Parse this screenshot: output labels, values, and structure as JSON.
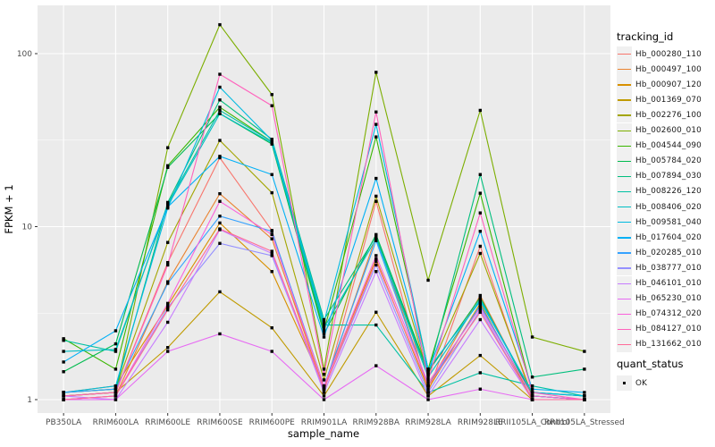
{
  "figure": {
    "x_axis_title": "sample_name",
    "y_axis_title": "FPKM + 1",
    "legend_tracking_title": "tracking_id",
    "legend_quant_title": "quant_status",
    "quant_items": [
      {
        "label": "OK",
        "marker": "black-filled-square"
      }
    ],
    "panel_background": "#ebebeb",
    "gridline_color": "#ffffff",
    "tick_text_color": "#4d4d4d",
    "point_color": "#000000"
  },
  "chart_data": {
    "type": "line",
    "title": "",
    "xlabel": "sample_name",
    "ylabel": "FPKM + 1",
    "y_scale": "log10",
    "ylim": [
      0.84,
      190
    ],
    "y_tick_labels": [
      "1",
      "10",
      "100"
    ],
    "y_tick_values": [
      1,
      10,
      100
    ],
    "y_minor_gridlines": [
      3.162,
      31.62
    ],
    "grid": true,
    "legend_position": "right",
    "point_marker": {
      "shape": "filled-square",
      "color": "#000000",
      "meaning": "OK"
    },
    "categories": [
      "PB350LA",
      "RRIM600LA",
      "RRIM600LE",
      "RRIM600SE",
      "RRIM600PE",
      "RRIM901LA",
      "RRIM928BA",
      "RRIM928LA",
      "RRIM928LE",
      "RRII105LA_Control",
      "RRII105LA_Stressed"
    ],
    "series": [
      {
        "name": "Hb_000280_110",
        "color": "#F8766D",
        "values": [
          1.05,
          1.1,
          6.2,
          25,
          9.5,
          1.1,
          14,
          1.1,
          7.7,
          1.0,
          1.0
        ]
      },
      {
        "name": "Hb_000497_100",
        "color": "#EA8331",
        "values": [
          1.0,
          1.05,
          4.8,
          15.5,
          8.5,
          1.15,
          8.8,
          1.2,
          4.0,
          1.05,
          1.0
        ]
      },
      {
        "name": "Hb_000907_120",
        "color": "#D89000",
        "values": [
          1.1,
          1.2,
          3.5,
          10.5,
          5.5,
          1.2,
          6.5,
          1.15,
          3.6,
          1.0,
          1.0
        ]
      },
      {
        "name": "Hb_001369_070",
        "color": "#C09B00",
        "values": [
          1.05,
          1.1,
          2.0,
          4.2,
          2.6,
          1.05,
          3.2,
          1.05,
          1.8,
          1.0,
          1.0
        ]
      },
      {
        "name": "Hb_002276_100",
        "color": "#A3A500",
        "values": [
          1.1,
          1.15,
          8.1,
          31.5,
          15.7,
          1.3,
          15,
          1.4,
          7.0,
          1.05,
          1.0
        ]
      },
      {
        "name": "Hb_002600_010",
        "color": "#7CAE00",
        "values": [
          1.05,
          1.1,
          28.6,
          147,
          58,
          1.5,
          78,
          4.9,
          47,
          2.3,
          1.9
        ]
      },
      {
        "name": "Hb_004544_090",
        "color": "#39B600",
        "values": [
          2.25,
          1.5,
          22.5,
          49,
          31,
          2.5,
          33,
          1.5,
          15.6,
          1.1,
          1.05
        ]
      },
      {
        "name": "Hb_005784_020",
        "color": "#00BB4E",
        "values": [
          1.45,
          2.1,
          22.0,
          45,
          30,
          2.4,
          9.0,
          1.45,
          3.9,
          1.05,
          1.0
        ]
      },
      {
        "name": "Hb_007894_030",
        "color": "#00BF7D",
        "values": [
          1.1,
          1.15,
          13.8,
          54,
          32,
          2.9,
          8.8,
          1.4,
          20,
          1.35,
          1.5
        ]
      },
      {
        "name": "Hb_008226_120",
        "color": "#00C1A3",
        "values": [
          2.2,
          1.9,
          13.5,
          47,
          31,
          2.7,
          2.7,
          1.1,
          1.43,
          1.2,
          1.05
        ]
      },
      {
        "name": "Hb_008406_020",
        "color": "#00BFC4",
        "values": [
          1.9,
          1.95,
          13.2,
          45,
          30.5,
          2.6,
          8.5,
          1.35,
          3.8,
          1.1,
          1.05
        ]
      },
      {
        "name": "Hb_009581_040",
        "color": "#00BAE0",
        "values": [
          1.1,
          1.2,
          12.8,
          64,
          31.5,
          2.8,
          39,
          1.5,
          3.7,
          1.1,
          1.05
        ]
      },
      {
        "name": "Hb_017604_020",
        "color": "#00B0F6",
        "values": [
          1.65,
          2.5,
          13.0,
          25.5,
          20,
          2.3,
          19,
          1.45,
          9.4,
          1.15,
          1.1
        ]
      },
      {
        "name": "Hb_020285_010",
        "color": "#35A2FF",
        "values": [
          1.1,
          1.15,
          4.7,
          11.5,
          9.4,
          1.2,
          8.3,
          1.2,
          3.5,
          1.05,
          1.0
        ]
      },
      {
        "name": "Hb_038777_010",
        "color": "#9590FF",
        "values": [
          1.0,
          1.05,
          3.4,
          8.0,
          6.8,
          1.15,
          6.0,
          1.1,
          3.3,
          1.0,
          1.0
        ]
      },
      {
        "name": "Hb_046101_010",
        "color": "#C77CFF",
        "values": [
          1.05,
          1.0,
          2.8,
          9.6,
          7.0,
          1.1,
          5.5,
          1.05,
          2.9,
          1.0,
          1.0
        ]
      },
      {
        "name": "Hb_065230_010",
        "color": "#E76BF3",
        "values": [
          1.0,
          1.0,
          1.9,
          2.4,
          1.9,
          1.0,
          1.57,
          1.0,
          1.15,
          1.0,
          1.0
        ]
      },
      {
        "name": "Hb_074312_020",
        "color": "#FA62DB",
        "values": [
          1.0,
          1.05,
          3.6,
          14,
          9.0,
          1.2,
          6.8,
          1.25,
          3.4,
          1.05,
          1.0
        ]
      },
      {
        "name": "Hb_084127_010",
        "color": "#FF62BC",
        "values": [
          1.05,
          1.1,
          6.0,
          76,
          50,
          1.4,
          46,
          1.3,
          12,
          1.1,
          1.0
        ]
      },
      {
        "name": "Hb_131662_010",
        "color": "#FF6A98",
        "values": [
          1.0,
          1.05,
          3.3,
          9.7,
          7.2,
          1.15,
          6.3,
          1.2,
          3.2,
          1.0,
          1.0
        ]
      }
    ]
  }
}
